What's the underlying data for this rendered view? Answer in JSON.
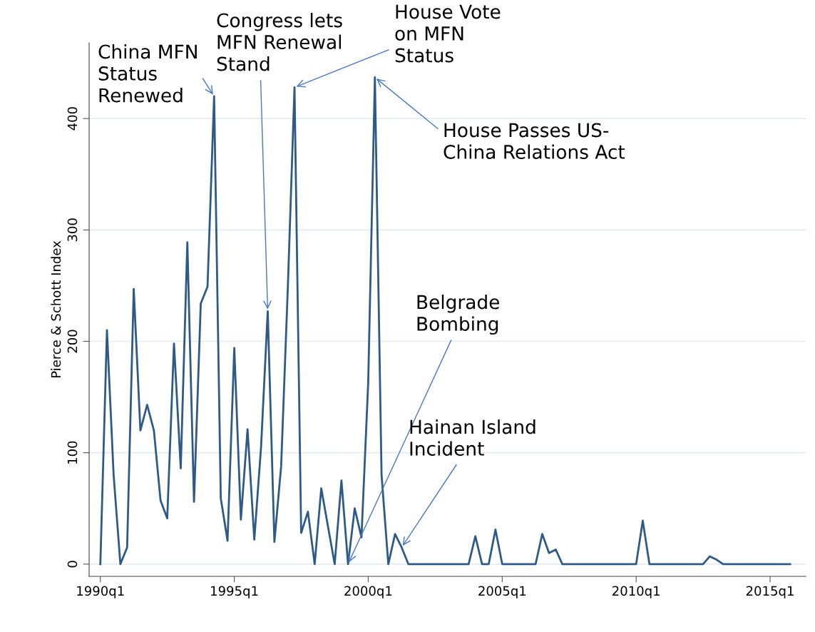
{
  "chart_data": {
    "type": "line",
    "ylabel": "Pierce & Schott Index",
    "x": [
      "1990-01",
      "1990-04",
      "1990-07",
      "1990-10",
      "1991-01",
      "1991-04",
      "1991-07",
      "1991-10",
      "1992-01",
      "1992-04",
      "1992-07",
      "1992-10",
      "1993-01",
      "1993-04",
      "1993-07",
      "1993-10",
      "1994-01",
      "1994-04",
      "1994-07",
      "1994-10",
      "1995-01",
      "1995-04",
      "1995-07",
      "1995-10",
      "1996-01",
      "1996-04",
      "1996-07",
      "1996-10",
      "1997-01",
      "1997-04",
      "1997-07",
      "1997-10",
      "1998-01",
      "1998-04",
      "1998-07",
      "1998-10",
      "1999-01",
      "1999-04",
      "1999-07",
      "1999-10",
      "2000-01",
      "2000-04",
      "2000-07",
      "2000-10",
      "2001-01",
      "2001-04",
      "2001-07",
      "2003-10",
      "2004-01",
      "2004-04",
      "2004-07",
      "2004-10",
      "2005-01",
      "2006-04",
      "2006-07",
      "2006-10",
      "2007-01",
      "2007-04",
      "2010-01",
      "2010-04",
      "2010-07",
      "2012-07",
      "2012-10",
      "2013-01",
      "2013-04",
      "2015-10"
    ],
    "series": [
      {
        "color": "#2d5a87",
        "values": [
          0,
          210,
          80,
          0,
          15,
          247,
          120,
          143,
          120,
          57,
          41,
          198,
          86,
          289,
          56,
          234,
          249,
          420,
          59,
          21,
          194,
          40,
          121,
          22,
          105,
          227,
          20,
          88,
          250,
          428,
          28,
          47,
          0,
          68,
          34,
          0,
          75,
          0,
          50,
          24,
          163,
          437,
          80,
          0,
          27,
          15,
          0,
          0,
          25,
          0,
          0,
          31,
          0,
          0,
          27,
          10,
          13,
          0,
          0,
          39,
          0,
          0,
          7,
          4,
          0,
          0
        ]
      }
    ],
    "xlim": [
      "1989-08",
      "2016-05"
    ],
    "ylim": [
      -11,
      468
    ],
    "xticks": [
      {
        "value": "1990-01",
        "label": "1990q1"
      },
      {
        "value": "1995-01",
        "label": "1995q1"
      },
      {
        "value": "2000-01",
        "label": "2000q1"
      },
      {
        "value": "2005-01",
        "label": "2005q1"
      },
      {
        "value": "2010-01",
        "label": "2010q1"
      },
      {
        "value": "2015-01",
        "label": "2015q1"
      }
    ],
    "yticks": [
      0,
      100,
      200,
      300,
      400
    ],
    "grid": "y",
    "legend": false,
    "annotations": [
      {
        "text": "China MFN\nStatus\nRenewed",
        "x": "1994-04",
        "y": 420
      },
      {
        "text": "Congress lets\nMFN Renewal\nStand",
        "x": "1996-04",
        "y": 227
      },
      {
        "text": "House Vote\non MFN\nStatus",
        "x": "1997-04",
        "y": 428
      },
      {
        "text": "House Passes US-\nChina Relations Act",
        "x": "2000-04",
        "y": 437
      },
      {
        "text": "Belgrade\nBombing",
        "x": "1999-04",
        "y": 0
      },
      {
        "text": "Hainan Island\nIncident",
        "x": "2001-04",
        "y": 15
      }
    ]
  }
}
